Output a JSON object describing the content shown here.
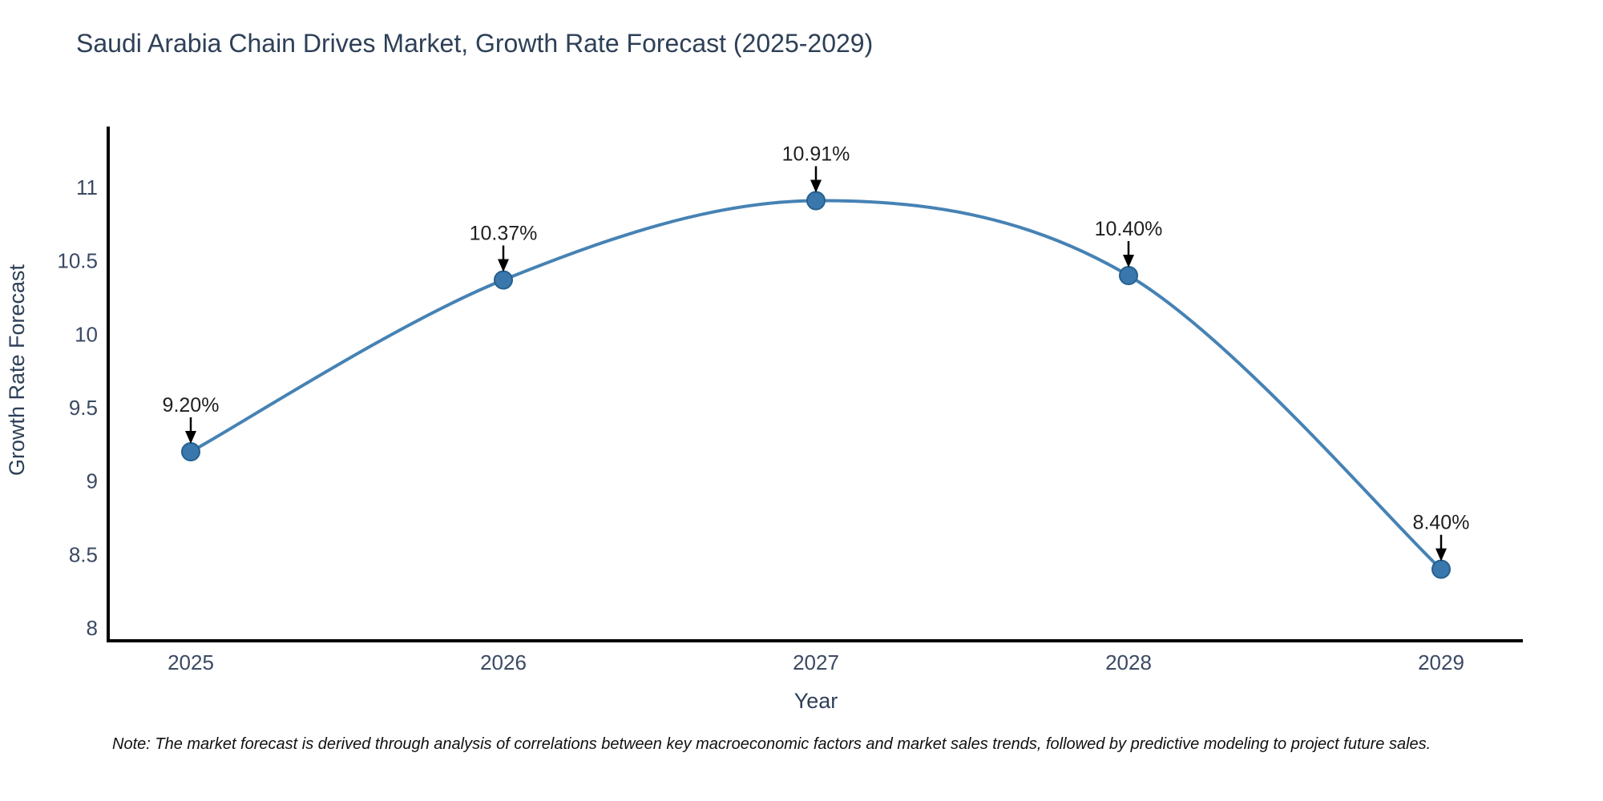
{
  "title": "Saudi Arabia Chain Drives Market, Growth Rate Forecast (2025-2029)",
  "note": "Note: The market forecast is derived through analysis of correlations between key macroeconomic factors and market sales trends, followed by predictive modeling to project future sales.",
  "chart_data": {
    "type": "line",
    "title": "Saudi Arabia Chain Drives Market, Growth Rate Forecast (2025-2029)",
    "x": [
      2025,
      2026,
      2027,
      2028,
      2029
    ],
    "values": [
      9.2,
      10.37,
      10.91,
      10.4,
      8.4
    ],
    "point_labels": [
      "9.20%",
      "10.37%",
      "10.91%",
      "10.40%",
      "8.40%"
    ],
    "xlabel": "Year",
    "ylabel": "Growth Rate Forecast",
    "yticks": [
      8,
      8.5,
      9,
      9.5,
      10,
      10.5,
      11
    ],
    "xticks": [
      "2025",
      "2026",
      "2027",
      "2028",
      "2029"
    ],
    "ylim": [
      7.91,
      11.42
    ],
    "grid": false,
    "legend_position": "none",
    "curve": "spline",
    "annotations_arrow": "down",
    "colors": {
      "line": "#4682b4",
      "marker_fill": "#3a77ad",
      "marker_edge": "#25608f",
      "axis": "#000000",
      "tick_label": "#3b4a63",
      "axis_title": "#2e4057",
      "annotation_text": "#1f1f1f",
      "arrow": "#000000",
      "background": "#ffffff"
    }
  }
}
